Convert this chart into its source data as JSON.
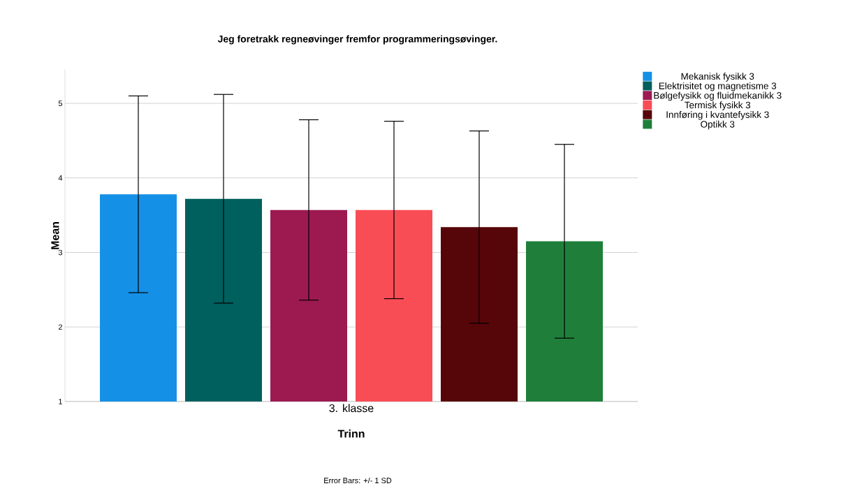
{
  "chart_data": {
    "type": "bar",
    "title": "Jeg foretrakk regneøvinger fremfor programmeringsøvinger.",
    "xlabel": "Trinn",
    "ylabel": "Mean",
    "annotations": [
      "Error Bars: +/- 1 SD"
    ],
    "categories": [
      "3. klasse"
    ],
    "series": [
      {
        "name": "Mekanisk fysikk 3",
        "color": "#1490e6",
        "values": [
          3.78
        ],
        "errors": [
          1.32
        ]
      },
      {
        "name": "Elektrisitet og magnetisme 3",
        "color": "#00605e",
        "values": [
          3.72
        ],
        "errors": [
          1.4
        ]
      },
      {
        "name": "Bølgefysikk og fluidmekanikk 3",
        "color": "#9c1a50",
        "values": [
          3.57
        ],
        "errors": [
          1.21
        ]
      },
      {
        "name": "Termisk fysikk 3",
        "color": "#f94d56",
        "values": [
          3.57
        ],
        "errors": [
          1.19
        ]
      },
      {
        "name": "Innføring i kvantefysikk 3",
        "color": "#560509",
        "values": [
          3.34
        ],
        "errors": [
          1.29
        ]
      },
      {
        "name": "Optikk 3",
        "color": "#1f7f3a",
        "values": [
          3.15
        ],
        "errors": [
          1.3
        ]
      }
    ],
    "ylim": [
      1,
      5.45
    ],
    "yticks": [
      1,
      2,
      3,
      4,
      5
    ],
    "grid": "y",
    "legend": "top right"
  }
}
